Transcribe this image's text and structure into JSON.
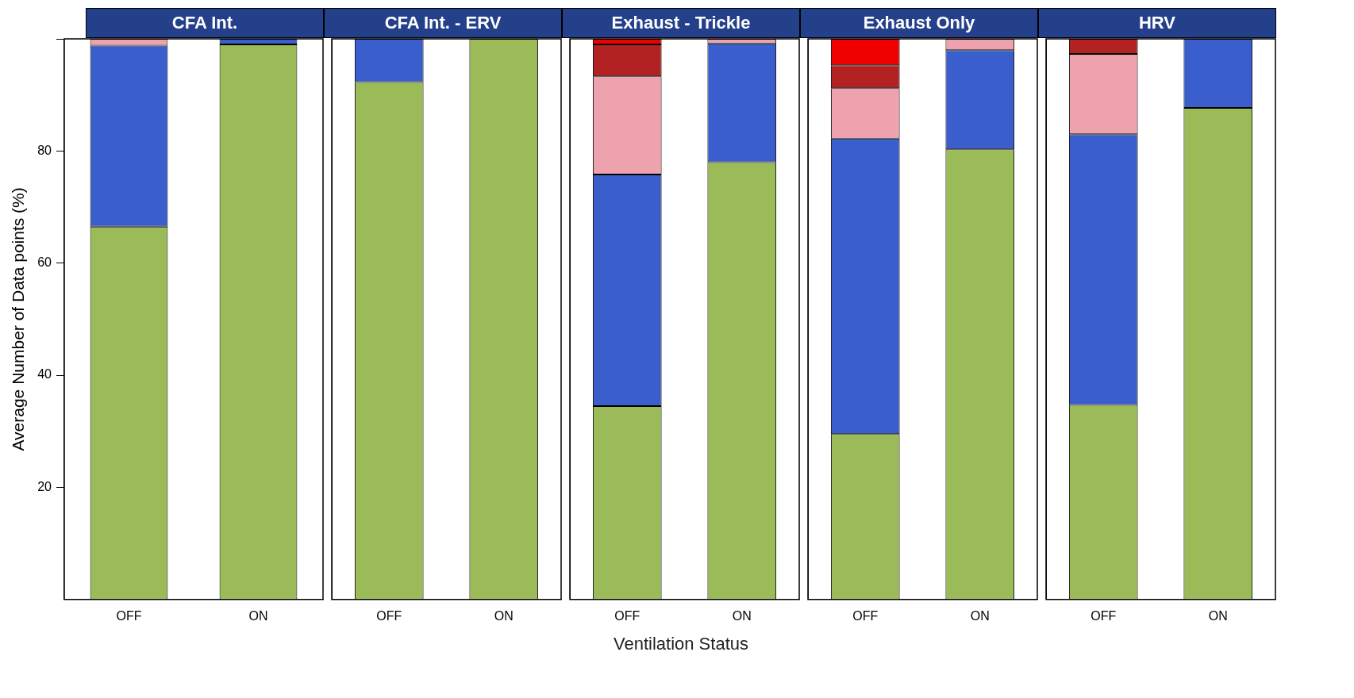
{
  "chart_data": [
    {
      "type": "bar",
      "title": "CFA Int.",
      "ylabel": "Average Number of Data points (%)",
      "categories": [
        "OFF",
        "ON"
      ],
      "stacked": true,
      "ylim": [
        0,
        100
      ],
      "yticks": [
        20,
        40,
        60,
        80,
        {
          "value": 100,
          "label": null
        }
      ],
      "series": [
        {
          "color": "#9bbb59",
          "values": [
            66.5,
            99
          ]
        },
        {
          "color": "#3a5fcd",
          "values": [
            32.3,
            1
          ]
        },
        {
          "color": "#eea2ad",
          "values": [
            1.2,
            null
          ]
        },
        {
          "color": "#b22222",
          "values": [
            null,
            null
          ]
        },
        {
          "color": "#ee0000",
          "values": [
            null,
            null
          ]
        }
      ]
    },
    {
      "type": "bar",
      "title": "CFA Int. - ERV",
      "categories": [
        "OFF",
        "ON"
      ],
      "stacked": true,
      "ylim": [
        0,
        100
      ],
      "tick_labels": "x",
      "series": [
        {
          "color": "#9bbb59",
          "values": [
            92.3,
            100
          ]
        },
        {
          "color": "#3a5fcd",
          "values": [
            7.7,
            null
          ]
        },
        {
          "color": "#eea2ad",
          "values": [
            null,
            null
          ]
        },
        {
          "color": "#b22222",
          "values": [
            null,
            null
          ]
        },
        {
          "color": "#ee0000",
          "values": [
            null,
            null
          ]
        }
      ]
    },
    {
      "type": "bar",
      "title": "Exhaust - Trickle",
      "xlabel": "Ventilation Status",
      "categories": [
        "OFF",
        "ON"
      ],
      "stacked": true,
      "ylim": [
        0,
        100
      ],
      "tick_labels": "x",
      "series": [
        {
          "color": "#9bbb59",
          "values": [
            34.5,
            78
          ]
        },
        {
          "color": "#3a5fcd",
          "values": [
            41.3,
            21.2
          ]
        },
        {
          "color": "#eea2ad",
          "values": [
            17.5,
            0.8
          ]
        },
        {
          "color": "#b22222",
          "values": [
            5.7,
            null
          ]
        },
        {
          "color": "#ee0000",
          "values": [
            1,
            null
          ]
        }
      ]
    },
    {
      "type": "bar",
      "title": "Exhaust Only",
      "categories": [
        "OFF",
        "ON"
      ],
      "stacked": true,
      "ylim": [
        0,
        100
      ],
      "tick_labels": "x",
      "series": [
        {
          "color": "#9bbb59",
          "values": [
            29.5,
            80.3
          ]
        },
        {
          "color": "#3a5fcd",
          "values": [
            52.7,
            17.7
          ]
        },
        {
          "color": "#eea2ad",
          "values": [
            9,
            2
          ]
        },
        {
          "color": "#b22222",
          "values": [
            4.1,
            null
          ]
        },
        {
          "color": "#ee0000",
          "values": [
            4.7,
            null
          ]
        }
      ]
    },
    {
      "type": "bar",
      "title": "HRV",
      "categories": [
        "OFF",
        "ON"
      ],
      "stacked": true,
      "ylim": [
        0,
        100
      ],
      "tick_labels": "x",
      "series": [
        {
          "color": "#9bbb59",
          "values": [
            34.7,
            87.7
          ]
        },
        {
          "color": "#3a5fcd",
          "values": [
            48.3,
            12.3
          ]
        },
        {
          "color": "#eea2ad",
          "values": [
            14.3,
            null
          ]
        },
        {
          "color": "#b22222",
          "values": [
            2.7,
            null
          ]
        },
        {
          "color": "#ee0000",
          "values": [
            null,
            null
          ]
        }
      ]
    }
  ]
}
